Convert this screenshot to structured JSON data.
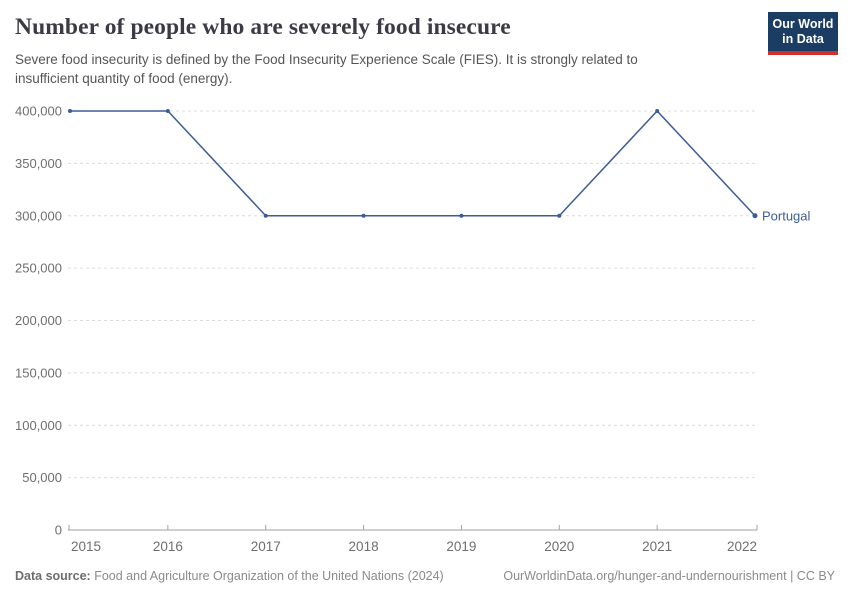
{
  "header": {
    "title": "Number of people who are severely food insecure",
    "subtitle_line1": "Severe food insecurity is defined by the Food Insecurity Experience Scale (FIES). It is strongly related to",
    "subtitle_line2": "insufficient quantity of food (energy).",
    "logo_line1": "Our World",
    "logo_line2": "in Data"
  },
  "chart_data": {
    "type": "line",
    "title": "Number of people who are severely food insecure",
    "x": [
      2015,
      2016,
      2017,
      2018,
      2019,
      2020,
      2021,
      2022
    ],
    "xtick_labels": [
      "2015",
      "2016",
      "2017",
      "2018",
      "2019",
      "2020",
      "2021",
      "2022"
    ],
    "series": [
      {
        "name": "Portugal",
        "values": [
          400000,
          400000,
          300000,
          300000,
          300000,
          300000,
          400000,
          300000
        ],
        "color": "#3d5c96"
      }
    ],
    "ylim": [
      0,
      400000
    ],
    "ytick_interval": 50000,
    "ytick_labels": [
      "0",
      "50,000",
      "100,000",
      "150,000",
      "200,000",
      "250,000",
      "300,000",
      "350,000",
      "400,000"
    ],
    "grid": "horizontal-dashed",
    "legend_position": "end-of-line-label",
    "end_label": "Portugal"
  },
  "footer": {
    "datasource_label": "Data source:",
    "datasource_text": " Food and Agriculture Organization of the United Nations (2024)",
    "link_text": "OurWorldinData.org/hunger-and-undernourishment | CC BY"
  },
  "colors": {
    "line": "#3d5c96",
    "grid": "#dcdcdc",
    "axis": "#a1a1a1",
    "tick_text": "#6e6e6e",
    "title": "#3b3b46",
    "subtitle": "#555555",
    "footer": "#8a8a8a",
    "logo_bg": "#1b3d63",
    "logo_stripe": "#d0312d"
  }
}
